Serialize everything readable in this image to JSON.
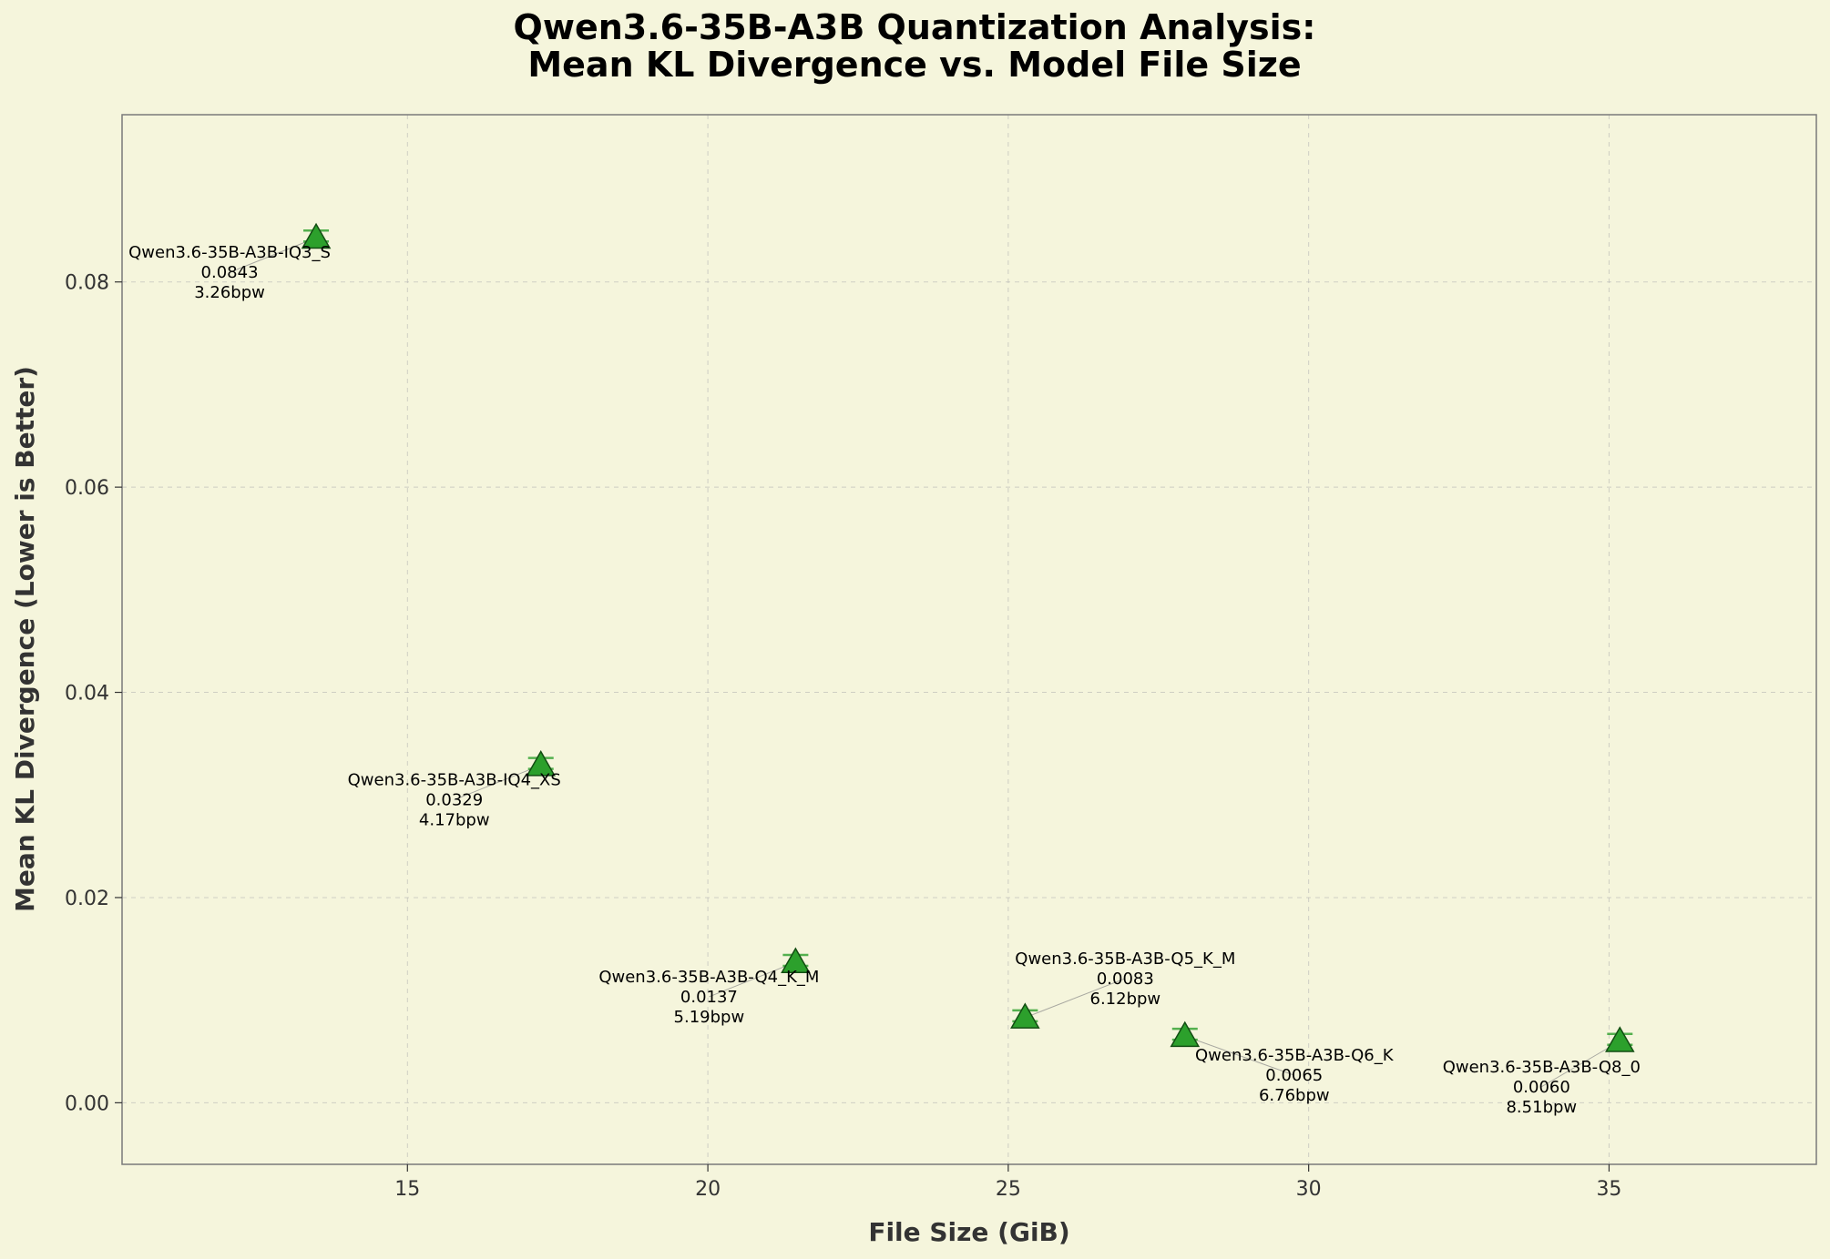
{
  "chart_data": {
    "type": "scatter",
    "title": [
      "Qwen3.6-35B-A3B Quantization Analysis:",
      "Mean KL Divergence vs. Model File Size"
    ],
    "xlabel": "File Size (GiB)",
    "ylabel": "Mean KL Divergence (Lower is Better)",
    "xlim": [
      10.25,
      38.45
    ],
    "ylim": [
      -0.006,
      0.0963
    ],
    "xticks": [
      15,
      20,
      25,
      30,
      35
    ],
    "xtick_labels": [
      "15",
      "20",
      "25",
      "30",
      "35"
    ],
    "yticks": [
      0.0,
      0.02,
      0.04,
      0.06,
      0.08
    ],
    "ytick_labels": [
      "0.00",
      "0.02",
      "0.04",
      "0.06",
      "0.08"
    ],
    "grid": true,
    "marker": "triangle",
    "color": "#2ca02c",
    "points": [
      {
        "name": "Qwen3.6-35B-A3B-IQ3_S",
        "x": 13.48,
        "y": 0.0843,
        "kld": "0.0843",
        "bpw": "3.26bpw",
        "label_pos": "left"
      },
      {
        "name": "Qwen3.6-35B-A3B-IQ4_XS",
        "x": 17.22,
        "y": 0.0329,
        "kld": "0.0329",
        "bpw": "4.17bpw",
        "label_pos": "left"
      },
      {
        "name": "Qwen3.6-35B-A3B-Q4_K_M",
        "x": 21.46,
        "y": 0.0137,
        "kld": "0.0137",
        "bpw": "5.19bpw",
        "label_pos": "left"
      },
      {
        "name": "Qwen3.6-35B-A3B-Q5_K_M",
        "x": 25.28,
        "y": 0.0083,
        "kld": "0.0083",
        "bpw": "6.12bpw",
        "label_pos": "upper-right"
      },
      {
        "name": "Qwen3.6-35B-A3B-Q6_K",
        "x": 27.94,
        "y": 0.0065,
        "kld": "0.0065",
        "bpw": "6.76bpw",
        "label_pos": "lower-right"
      },
      {
        "name": "Qwen3.6-35B-A3B-Q8_0",
        "x": 35.18,
        "y": 0.006,
        "kld": "0.0060",
        "bpw": "8.51bpw",
        "label_pos": "lower-left"
      }
    ]
  }
}
